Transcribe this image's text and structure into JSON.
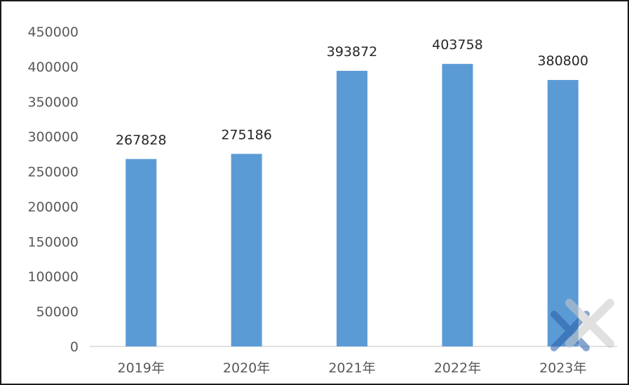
{
  "chart_data": {
    "type": "bar",
    "categories": [
      "2019年",
      "2020年",
      "2021年",
      "2022年",
      "2023年"
    ],
    "values": [
      267828,
      275186,
      393872,
      403758,
      380800
    ],
    "data_labels": [
      "267828",
      "275186",
      "393872",
      "403758",
      "380800"
    ],
    "title": "",
    "xlabel": "",
    "ylabel": "",
    "ylim": [
      0,
      450000
    ],
    "yticks": [
      "0",
      "50000",
      "100000",
      "150000",
      "200000",
      "250000",
      "300000",
      "350000",
      "400000",
      "450000"
    ],
    "grid": false,
    "legend": "none",
    "bar_color": "#5b9bd5"
  }
}
